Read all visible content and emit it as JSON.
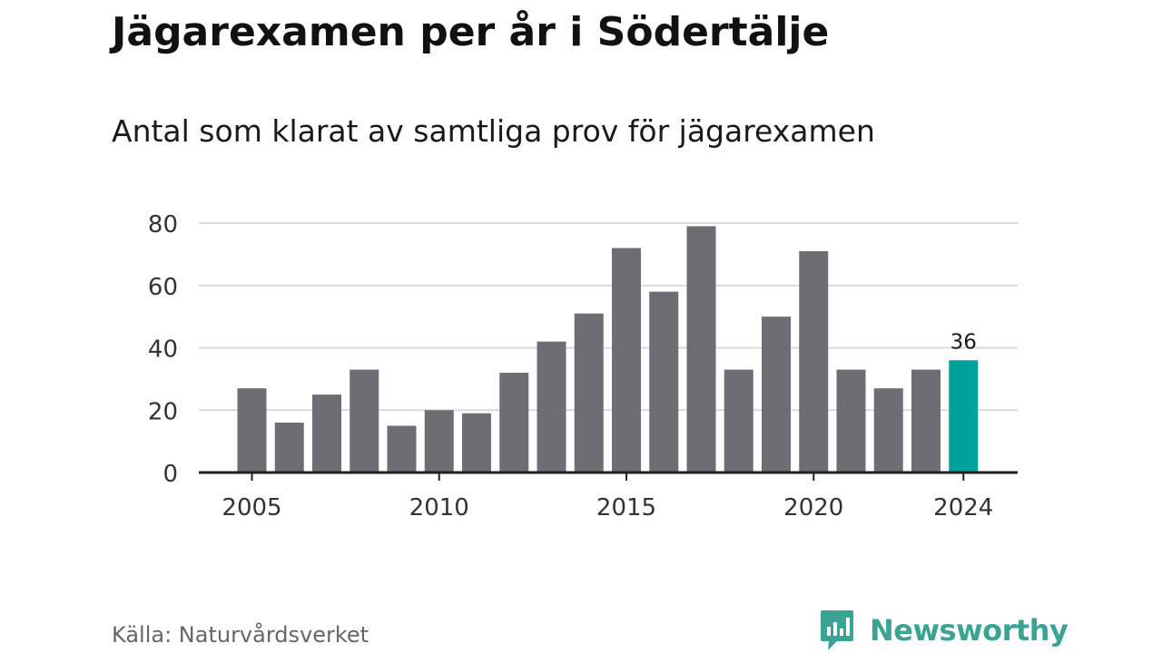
{
  "title": "Jägarexamen per år i Södertälje",
  "subtitle": "Antal som klarat av samtliga prov för jägarexamen",
  "source": "Källa: Naturvårdsverket",
  "brand": {
    "name": "Newsworthy",
    "color": "#3aa394",
    "icon": "newsworthy-chart-bubble-icon"
  },
  "colors": {
    "bar": "#6e6d73",
    "highlight": "#00a19a",
    "grid": "#d9d9d9",
    "axis": "#222222"
  },
  "chart_data": {
    "type": "bar",
    "categories": [
      "2005",
      "2006",
      "2007",
      "2008",
      "2009",
      "2010",
      "2011",
      "2012",
      "2013",
      "2014",
      "2015",
      "2016",
      "2017",
      "2018",
      "2019",
      "2020",
      "2021",
      "2022",
      "2023",
      "2024"
    ],
    "values": [
      27,
      16,
      25,
      33,
      15,
      20,
      19,
      32,
      42,
      51,
      72,
      58,
      79,
      33,
      50,
      71,
      33,
      27,
      33,
      36
    ],
    "highlight_index": 19,
    "data_labels": [
      {
        "index": 19,
        "text": "36"
      }
    ],
    "x_tick_labels": [
      "2005",
      "2010",
      "2015",
      "2020",
      "2024"
    ],
    "y_ticks": [
      0,
      20,
      40,
      60,
      80
    ],
    "ylim": [
      0,
      80
    ],
    "xlabel": "",
    "ylabel": "",
    "grid": true,
    "legend": "none"
  }
}
